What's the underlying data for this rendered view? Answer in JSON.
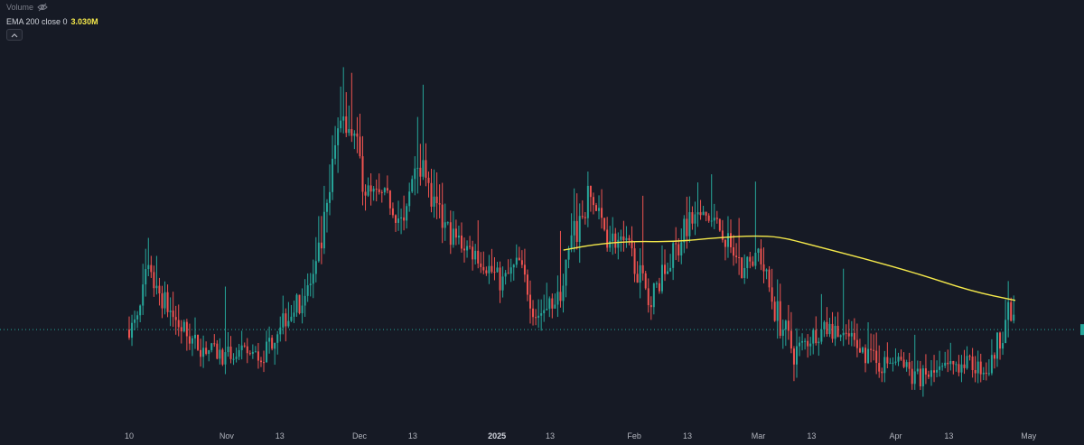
{
  "legend": {
    "volume_label": "Volume",
    "ema_label": "EMA 200 close 0",
    "ema_value": "3.030M"
  },
  "colors": {
    "background": "#161a25",
    "up": "#26a69a",
    "down": "#ef5350",
    "ema": "#f5e94b",
    "grid": "#1f2430",
    "crosshair": "#26a69a",
    "marker": "#26a69a"
  },
  "chart_data": {
    "type": "bar",
    "title": "",
    "xlabel": "",
    "ylabel": "",
    "grid": false,
    "x_tick_labels": [
      {
        "label": "10",
        "date": "2024-10-10"
      },
      {
        "label": "Nov",
        "date": "2024-11-01"
      },
      {
        "label": "13",
        "date": "2024-11-13"
      },
      {
        "label": "Dec",
        "date": "2024-12-01"
      },
      {
        "label": "13",
        "date": "2024-12-13"
      },
      {
        "label": "2025",
        "date": "2025-01-01",
        "emphasis": true
      },
      {
        "label": "13",
        "date": "2025-01-13"
      },
      {
        "label": "Feb",
        "date": "2025-02-01"
      },
      {
        "label": "13",
        "date": "2025-02-13"
      },
      {
        "label": "Mar",
        "date": "2025-03-01"
      },
      {
        "label": "13",
        "date": "2025-03-13"
      },
      {
        "label": "Apr",
        "date": "2025-04-01"
      },
      {
        "label": "13",
        "date": "2025-04-13"
      },
      {
        "label": "May",
        "date": "2025-05-01"
      }
    ],
    "series": [
      {
        "name": "EMA 200 close 0",
        "kind": "line",
        "points": [
          [
            "2025-01-16",
            2.73
          ],
          [
            "2025-01-23",
            2.92
          ],
          [
            "2025-01-31",
            3.03
          ],
          [
            "2025-02-10",
            3.01
          ],
          [
            "2025-02-20",
            3.16
          ],
          [
            "2025-02-28",
            3.22
          ],
          [
            "2025-03-06",
            3.18
          ],
          [
            "2025-03-13",
            2.9
          ],
          [
            "2025-03-25",
            2.43
          ],
          [
            "2025-04-06",
            1.92
          ],
          [
            "2025-04-18",
            1.32
          ],
          [
            "2025-04-28",
            1.0
          ]
        ]
      },
      {
        "name": "Volume",
        "kind": "candles",
        "anchors": [
          [
            "2024-10-10",
            0.0
          ],
          [
            "2024-10-12",
            0.3
          ],
          [
            "2024-10-14",
            1.8
          ],
          [
            "2024-10-17",
            1.2
          ],
          [
            "2024-10-21",
            0.2
          ],
          [
            "2024-10-25",
            -0.5
          ],
          [
            "2024-10-31",
            -0.9
          ],
          [
            "2024-11-06",
            -0.8
          ],
          [
            "2024-11-09",
            -1.0
          ],
          [
            "2024-11-13",
            0.3
          ],
          [
            "2024-11-18",
            1.0
          ],
          [
            "2024-11-21",
            1.9
          ],
          [
            "2024-11-24",
            4.2
          ],
          [
            "2024-11-27",
            7.8
          ],
          [
            "2024-11-29",
            7.0
          ],
          [
            "2024-12-03",
            4.5
          ],
          [
            "2024-12-07",
            4.6
          ],
          [
            "2024-12-11",
            3.5
          ],
          [
            "2024-12-14",
            6.2
          ],
          [
            "2024-12-18",
            4.0
          ],
          [
            "2024-12-22",
            3.2
          ],
          [
            "2024-12-28",
            2.5
          ],
          [
            "2025-01-02",
            1.6
          ],
          [
            "2025-01-06",
            2.3
          ],
          [
            "2025-01-10",
            0.5
          ],
          [
            "2025-01-15",
            1.1
          ],
          [
            "2025-01-18",
            3.0
          ],
          [
            "2025-01-22",
            4.6
          ],
          [
            "2025-01-26",
            3.2
          ],
          [
            "2025-01-31",
            2.8
          ],
          [
            "2025-02-04",
            1.0
          ],
          [
            "2025-02-08",
            2.0
          ],
          [
            "2025-02-13",
            3.6
          ],
          [
            "2025-02-17",
            3.9
          ],
          [
            "2025-02-21",
            3.4
          ],
          [
            "2025-02-25",
            2.0
          ],
          [
            "2025-03-01",
            2.7
          ],
          [
            "2025-03-05",
            0.6
          ],
          [
            "2025-03-09",
            -0.8
          ],
          [
            "2025-03-14",
            -0.1
          ],
          [
            "2025-03-17",
            0.0
          ],
          [
            "2025-03-22",
            -0.4
          ],
          [
            "2025-03-28",
            -1.2
          ],
          [
            "2025-04-02",
            -1.1
          ],
          [
            "2025-04-06",
            -1.7
          ],
          [
            "2025-04-12",
            -1.4
          ],
          [
            "2025-04-16",
            -1.1
          ],
          [
            "2025-04-22",
            -1.4
          ],
          [
            "2025-04-26",
            0.5
          ],
          [
            "2025-04-28",
            0.3
          ]
        ]
      }
    ],
    "current_value_line": 0.0,
    "ylim": [
      -3.0,
      11.0
    ]
  }
}
